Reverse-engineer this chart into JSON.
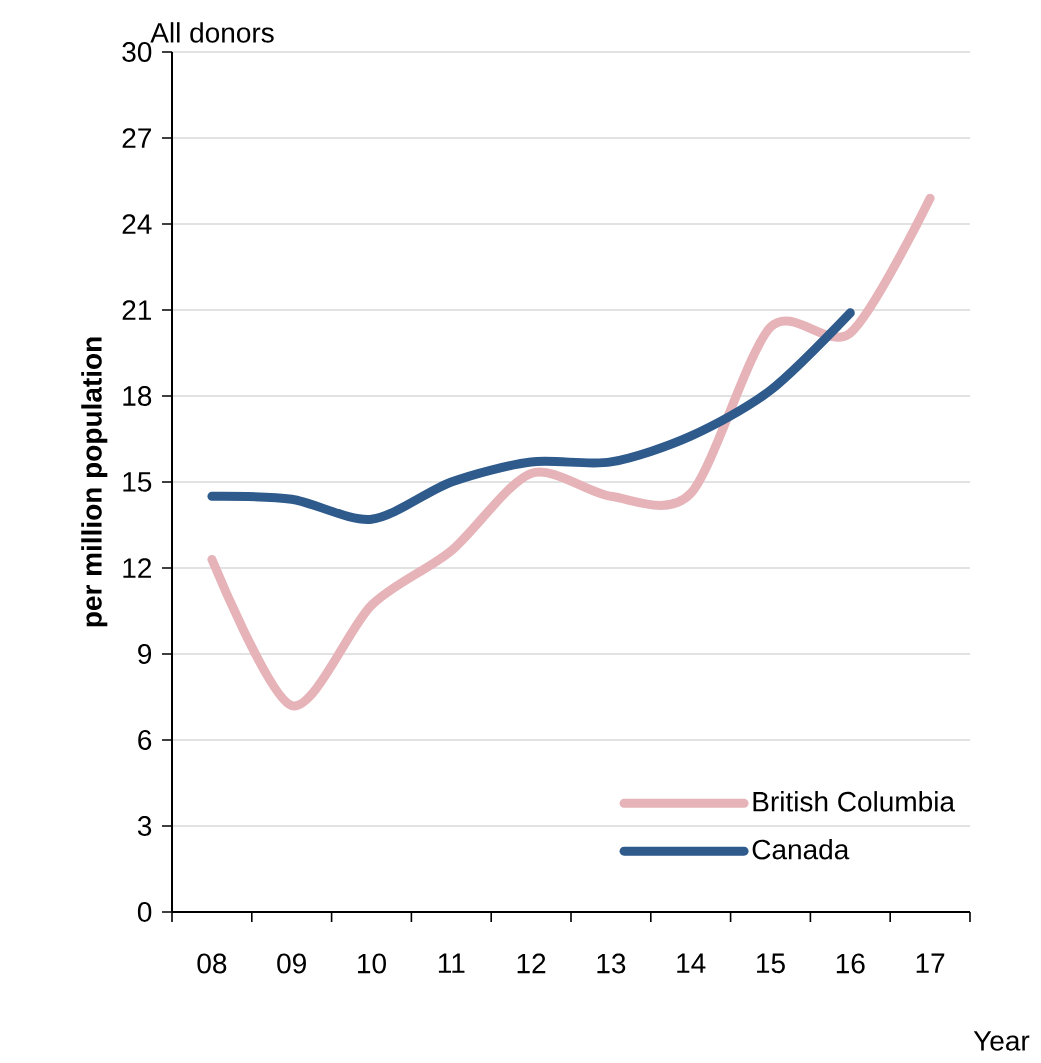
{
  "chart_data": {
    "type": "line",
    "title": "All donors",
    "xlabel": "Year",
    "ylabel": "per million population",
    "categories": [
      "08",
      "09",
      "10",
      "11",
      "12",
      "13",
      "14",
      "15",
      "16",
      "17"
    ],
    "series": [
      {
        "name": "British Columbia",
        "color": "#e6b3b8",
        "values": [
          12.3,
          7.2,
          10.7,
          12.6,
          15.3,
          14.5,
          14.6,
          20.4,
          20.2,
          24.9
        ]
      },
      {
        "name": "Canada",
        "color": "#2e5a8c",
        "values": [
          14.5,
          14.4,
          13.7,
          15.0,
          15.7,
          15.7,
          16.6,
          18.2,
          20.9,
          null
        ]
      }
    ],
    "ylim": [
      0,
      30
    ],
    "yticks": [
      0,
      3,
      6,
      9,
      12,
      15,
      18,
      21,
      24,
      27,
      30
    ],
    "grid": "y",
    "legend": "bottom right",
    "marker": "none",
    "line_style": "solid"
  }
}
